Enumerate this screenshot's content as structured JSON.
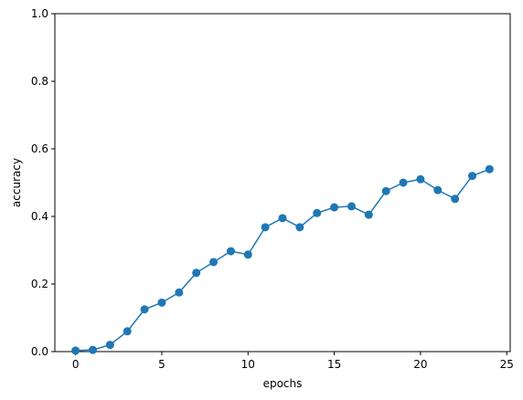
{
  "chart_data": {
    "type": "line",
    "xlabel": "epochs",
    "ylabel": "accuracy",
    "x": [
      0,
      1,
      2,
      3,
      4,
      5,
      6,
      7,
      8,
      9,
      10,
      11,
      12,
      13,
      14,
      15,
      16,
      17,
      18,
      19,
      20,
      21,
      22,
      23,
      24
    ],
    "series": [
      {
        "color": "#1f77b4",
        "values": [
          0.003,
          0.005,
          0.02,
          0.06,
          0.125,
          0.145,
          0.175,
          0.233,
          0.265,
          0.297,
          0.287,
          0.368,
          0.395,
          0.368,
          0.41,
          0.427,
          0.43,
          0.405,
          0.475,
          0.5,
          0.51,
          0.478,
          0.452,
          0.52,
          0.54
        ]
      }
    ],
    "xlim": [
      -1.2,
      25.2
    ],
    "xticks": [
      0,
      5,
      10,
      15,
      20,
      25
    ],
    "ylim": [
      0,
      1
    ],
    "yticks": [
      {
        "value": 0,
        "label": "0.0"
      },
      0.2,
      0.4,
      0.6,
      0.8,
      {
        "value": 1,
        "label": "1.0"
      }
    ],
    "grid": false,
    "markers": true
  }
}
